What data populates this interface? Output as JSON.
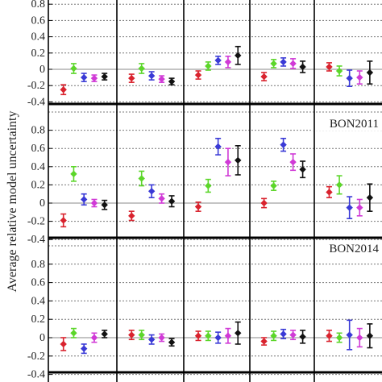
{
  "chart_data": {
    "type": "scatter",
    "ylabel": "Average relative model uncertainty",
    "y_tick_labels": [
      "-0.4",
      "-0.2",
      "0",
      "0.2",
      "0.4",
      "0.6",
      "0.8"
    ],
    "n_columns": 5,
    "series_colors": [
      "#d9232e",
      "#5cd62a",
      "#3a3ad6",
      "#d03ad6",
      "#111111"
    ],
    "panels": [
      {
        "label": "",
        "ylim": [
          -0.4,
          1.0
        ],
        "groups": [
          {
            "points": [
              {
                "y": -0.25,
                "err": 0.06
              },
              {
                "y": 0.01,
                "err": 0.06
              },
              {
                "y": -0.1,
                "err": 0.05
              },
              {
                "y": -0.11,
                "err": 0.04
              },
              {
                "y": -0.09,
                "err": 0.04
              }
            ]
          },
          {
            "points": [
              {
                "y": -0.11,
                "err": 0.05
              },
              {
                "y": 0.01,
                "err": 0.06
              },
              {
                "y": -0.08,
                "err": 0.05
              },
              {
                "y": -0.12,
                "err": 0.04
              },
              {
                "y": -0.15,
                "err": 0.04
              }
            ]
          },
          {
            "points": [
              {
                "y": -0.07,
                "err": 0.05
              },
              {
                "y": 0.04,
                "err": 0.05
              },
              {
                "y": 0.11,
                "err": 0.05
              },
              {
                "y": 0.09,
                "err": 0.07
              },
              {
                "y": 0.17,
                "err": 0.11
              }
            ]
          },
          {
            "points": [
              {
                "y": -0.09,
                "err": 0.05
              },
              {
                "y": 0.07,
                "err": 0.05
              },
              {
                "y": 0.09,
                "err": 0.05
              },
              {
                "y": 0.07,
                "err": 0.06
              },
              {
                "y": 0.03,
                "err": 0.07
              }
            ]
          },
          {
            "points": [
              {
                "y": 0.03,
                "err": 0.05
              },
              {
                "y": -0.02,
                "err": 0.06
              },
              {
                "y": -0.11,
                "err": 0.1
              },
              {
                "y": -0.1,
                "err": 0.08
              },
              {
                "y": -0.04,
                "err": 0.14
              }
            ]
          }
        ]
      },
      {
        "label": "BON2011",
        "ylim": [
          -0.4,
          1.0
        ],
        "groups": [
          {
            "points": [
              {
                "y": -0.19,
                "err": 0.07
              },
              {
                "y": 0.32,
                "err": 0.08
              },
              {
                "y": 0.04,
                "err": 0.06
              },
              {
                "y": 0.0,
                "err": 0.04
              },
              {
                "y": -0.02,
                "err": 0.05
              }
            ]
          },
          {
            "points": [
              {
                "y": -0.14,
                "err": 0.05
              },
              {
                "y": 0.27,
                "err": 0.08
              },
              {
                "y": 0.13,
                "err": 0.07
              },
              {
                "y": 0.05,
                "err": 0.05
              },
              {
                "y": 0.02,
                "err": 0.06
              }
            ]
          },
          {
            "points": [
              {
                "y": -0.04,
                "err": 0.05
              },
              {
                "y": 0.19,
                "err": 0.07
              },
              {
                "y": 0.62,
                "err": 0.09
              },
              {
                "y": 0.45,
                "err": 0.15
              },
              {
                "y": 0.47,
                "err": 0.16
              }
            ]
          },
          {
            "points": [
              {
                "y": 0.0,
                "err": 0.05
              },
              {
                "y": 0.19,
                "err": 0.05
              },
              {
                "y": 0.64,
                "err": 0.07
              },
              {
                "y": 0.45,
                "err": 0.09
              },
              {
                "y": 0.37,
                "err": 0.09
              }
            ]
          },
          {
            "points": [
              {
                "y": 0.12,
                "err": 0.06
              },
              {
                "y": 0.2,
                "err": 0.1
              },
              {
                "y": -0.05,
                "err": 0.12
              },
              {
                "y": -0.05,
                "err": 0.09
              },
              {
                "y": 0.06,
                "err": 0.15
              }
            ]
          }
        ]
      },
      {
        "label": "BON2014",
        "ylim": [
          -0.4,
          1.0
        ],
        "groups": [
          {
            "points": [
              {
                "y": -0.07,
                "err": 0.07
              },
              {
                "y": 0.05,
                "err": 0.05
              },
              {
                "y": -0.12,
                "err": 0.05
              },
              {
                "y": 0.0,
                "err": 0.05
              },
              {
                "y": 0.04,
                "err": 0.04
              }
            ]
          },
          {
            "points": [
              {
                "y": 0.03,
                "err": 0.05
              },
              {
                "y": 0.03,
                "err": 0.05
              },
              {
                "y": -0.02,
                "err": 0.05
              },
              {
                "y": 0.0,
                "err": 0.04
              },
              {
                "y": -0.05,
                "err": 0.04
              }
            ]
          },
          {
            "points": [
              {
                "y": 0.02,
                "err": 0.05
              },
              {
                "y": 0.02,
                "err": 0.05
              },
              {
                "y": 0.0,
                "err": 0.06
              },
              {
                "y": 0.02,
                "err": 0.08
              },
              {
                "y": 0.05,
                "err": 0.12
              }
            ]
          },
          {
            "points": [
              {
                "y": -0.04,
                "err": 0.04
              },
              {
                "y": 0.02,
                "err": 0.05
              },
              {
                "y": 0.04,
                "err": 0.05
              },
              {
                "y": 0.03,
                "err": 0.05
              },
              {
                "y": 0.01,
                "err": 0.07
              }
            ]
          },
          {
            "points": [
              {
                "y": 0.02,
                "err": 0.06
              },
              {
                "y": 0.0,
                "err": 0.05
              },
              {
                "y": 0.03,
                "err": 0.16
              },
              {
                "y": 0.0,
                "err": 0.1
              },
              {
                "y": 0.02,
                "err": 0.13
              }
            ]
          }
        ]
      }
    ]
  }
}
